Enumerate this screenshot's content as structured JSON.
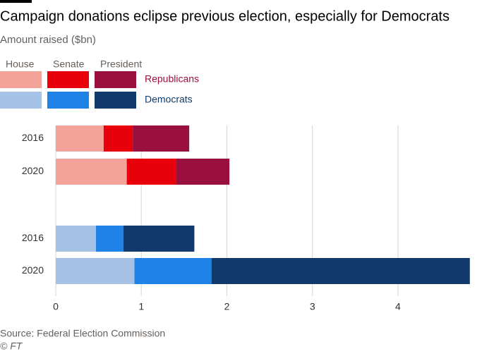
{
  "chart_data": {
    "type": "stacked-bar",
    "title": "Campaign donations eclipse previous election, especially for Democrats",
    "subtitle": "Amount raised ($bn)",
    "source": "Source: Federal Election Commission",
    "credit": "© FT",
    "series_names": [
      "House",
      "Senate",
      "President"
    ],
    "groups": [
      {
        "name": "Republicans",
        "categories": [
          "2016",
          "2020"
        ],
        "series": [
          {
            "color": "#f4a39a",
            "values": [
              0.56,
              0.83
            ]
          },
          {
            "color": "#e8000b",
            "values": [
              0.34,
              0.58
            ]
          },
          {
            "color": "#990f3d",
            "values": [
              0.66,
              0.62
            ]
          }
        ]
      },
      {
        "name": "Democrats",
        "categories": [
          "2016",
          "2020"
        ],
        "series": [
          {
            "color": "#a6c3e6",
            "values": [
              0.47,
              0.92
            ]
          },
          {
            "color": "#1e82e6",
            "values": [
              0.32,
              0.9
            ]
          },
          {
            "color": "#0f3a6b",
            "values": [
              0.83,
              3.02
            ]
          }
        ]
      }
    ],
    "xlim": [
      0,
      4.85
    ],
    "xticks": [
      0,
      1,
      2,
      3,
      4
    ],
    "grid": true
  }
}
